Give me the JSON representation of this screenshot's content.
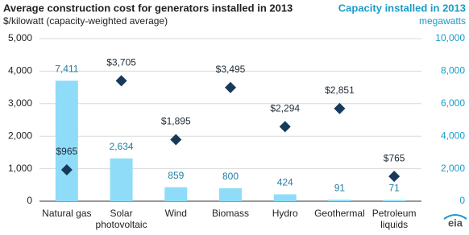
{
  "chart_data": {
    "type": "bar",
    "title": "Average construction cost for generators installed in 2013",
    "y_label": "$/kilowatt (capacity-weighted average)",
    "y2_title": "Capacity installed in 2013",
    "y2_label": "megawatts",
    "logo": "eia",
    "categories": [
      "Natural gas",
      "Solar photovoltaic",
      "Wind",
      "Biomass",
      "Hydro",
      "Geothermal",
      "Petroleum liquids"
    ],
    "series": [
      {
        "type": "bar",
        "axis": "y2",
        "color": "#8fdcf8",
        "label_color": "#1f7fa6",
        "values": [
          7411,
          2634,
          859,
          800,
          424,
          91,
          71
        ],
        "value_labels": [
          "7,411",
          "2,634",
          "859",
          "800",
          "424",
          "91",
          "71"
        ]
      },
      {
        "type": "scatter",
        "axis": "y",
        "color": "#173a5a",
        "label_color": "#1e2a36",
        "values": [
          965,
          3705,
          1895,
          3495,
          2294,
          2851,
          765
        ],
        "value_labels": [
          "$965",
          "$3,705",
          "$1,895",
          "$3,495",
          "$2,294",
          "$2,851",
          "$765"
        ]
      }
    ],
    "ylim": [
      0,
      5000
    ],
    "yticks": [
      0,
      {
        "value": 1000,
        "label": "1,000"
      },
      {
        "value": 2000,
        "label": "2,000"
      },
      {
        "value": 3000,
        "label": "3,000"
      },
      {
        "value": 4000,
        "label": "4,000"
      },
      {
        "value": 5000,
        "label": "5,000"
      }
    ],
    "y2lim": [
      0,
      10000
    ],
    "y2ticks": [
      0,
      {
        "value": 2000,
        "label": "2,000"
      },
      {
        "value": 4000,
        "label": "4,000"
      },
      {
        "value": 6000,
        "label": "6,000"
      },
      {
        "value": 8000,
        "label": "8,000"
      },
      {
        "value": 10000,
        "label": "10,000"
      }
    ],
    "grid": true
  }
}
